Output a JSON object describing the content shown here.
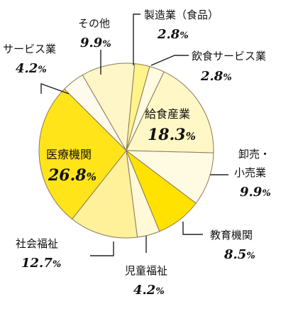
{
  "chart_data": {
    "type": "pie",
    "title": "",
    "unit": "%",
    "slices": [
      {
        "label": "製造業（食品）",
        "value": 2.8,
        "color": "#FFF38A"
      },
      {
        "label": "飲食サービス業",
        "value": 2.8,
        "color": "#FFFBE0"
      },
      {
        "label": "給食産業",
        "value": 18.3,
        "color": "#FFF8C6"
      },
      {
        "label": "卸売・小売業",
        "value": 9.9,
        "color": "#FFFBE3"
      },
      {
        "label": "教育機関",
        "value": 8.5,
        "color": "#FFE200"
      },
      {
        "label": "児童福祉",
        "value": 4.2,
        "color": "#FFF9D8"
      },
      {
        "label": "社会福祉",
        "value": 12.7,
        "color": "#FFF09A"
      },
      {
        "label": "医療機関",
        "value": 26.8,
        "color": "#FFE41A"
      },
      {
        "label": "サービス業",
        "value": 4.2,
        "color": "#FFFBEC"
      },
      {
        "label": "その他",
        "value": 9.9,
        "color": "#FFF6C8"
      }
    ],
    "legend": "none"
  },
  "labels": {
    "manufacturing": {
      "name": "製造業（食品）",
      "value": "2.8",
      "unit": "%"
    },
    "food_service": {
      "name": "飲食サービス業",
      "value": "2.8",
      "unit": "%"
    },
    "catering": {
      "name": "給食産業",
      "value": "18.3",
      "unit": "%"
    },
    "retail_line1": "卸売・",
    "retail_line2": "小売業",
    "retail": {
      "value": "9.9",
      "unit": "%"
    },
    "education": {
      "name": "教育機関",
      "value": "8.5",
      "unit": "%"
    },
    "child_welfare": {
      "name": "児童福祉",
      "value": "4.2",
      "unit": "%"
    },
    "social_welfare": {
      "name": "社会福祉",
      "value": "12.7",
      "unit": "%"
    },
    "medical": {
      "name": "医療機関",
      "value": "26.8",
      "unit": "%"
    },
    "services": {
      "name": "サービス業",
      "value": "4.2",
      "unit": "%"
    },
    "other": {
      "name": "その他",
      "value": "9.9",
      "unit": "%"
    }
  }
}
